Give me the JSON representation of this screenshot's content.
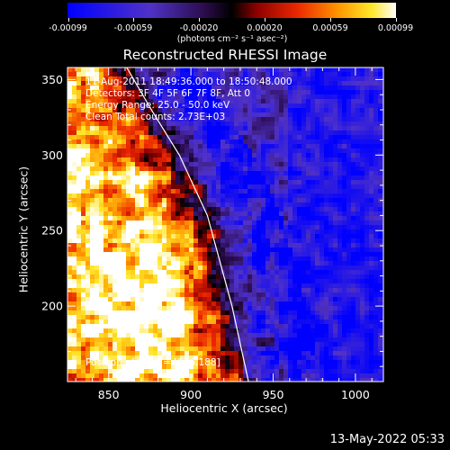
{
  "colorbar": {
    "ticks": [
      "-0.00099",
      "-0.00059",
      "-0.00020",
      "0.00020",
      "0.00059",
      "0.00099"
    ],
    "units": "(photons cm⁻² s⁻¹ asec⁻²)"
  },
  "annotations": {
    "time_range": "11-Aug-2011 18:49:36.000 to 18:50:48.000",
    "detectors": "Detectors: 3F 4F 5F 6F 7F 8F, Att 0",
    "energy": "Energy Range: 25.0 - 50.0 keV",
    "clean": "Clean     Total counts: 2.73E+03",
    "peak": "Position of Peak = [876,188]"
  },
  "timestamp": "13-May-2022 05:33",
  "colors": {
    "background": "#000000",
    "limb": "#ffffff"
  },
  "chart_data": {
    "type": "heatmap",
    "title": "Reconstructed RHESSI Image",
    "xlabel": "Heliocentric X (arcsec)",
    "ylabel": "Heliocentric Y (arcsec)",
    "xlim": [
      825,
      1017
    ],
    "ylim": [
      150,
      358
    ],
    "xticks": [
      850,
      900,
      950,
      1000
    ],
    "yticks": [
      200,
      250,
      300,
      350
    ],
    "xtick_labels": [
      "850",
      "900",
      "950",
      "1000"
    ],
    "ytick_labels": [
      "200",
      "250",
      "300",
      "350"
    ],
    "color_range": [
      -0.00099,
      0.00099
    ],
    "colormap": "blue-purple-black-red-yellow-white",
    "peak_position": [
      876,
      188
    ],
    "limb_curve": {
      "x": [
        861,
        876,
        893,
        910,
        925,
        935
      ],
      "y": [
        358,
        330,
        300,
        260,
        200,
        150
      ]
    },
    "grid": false
  }
}
